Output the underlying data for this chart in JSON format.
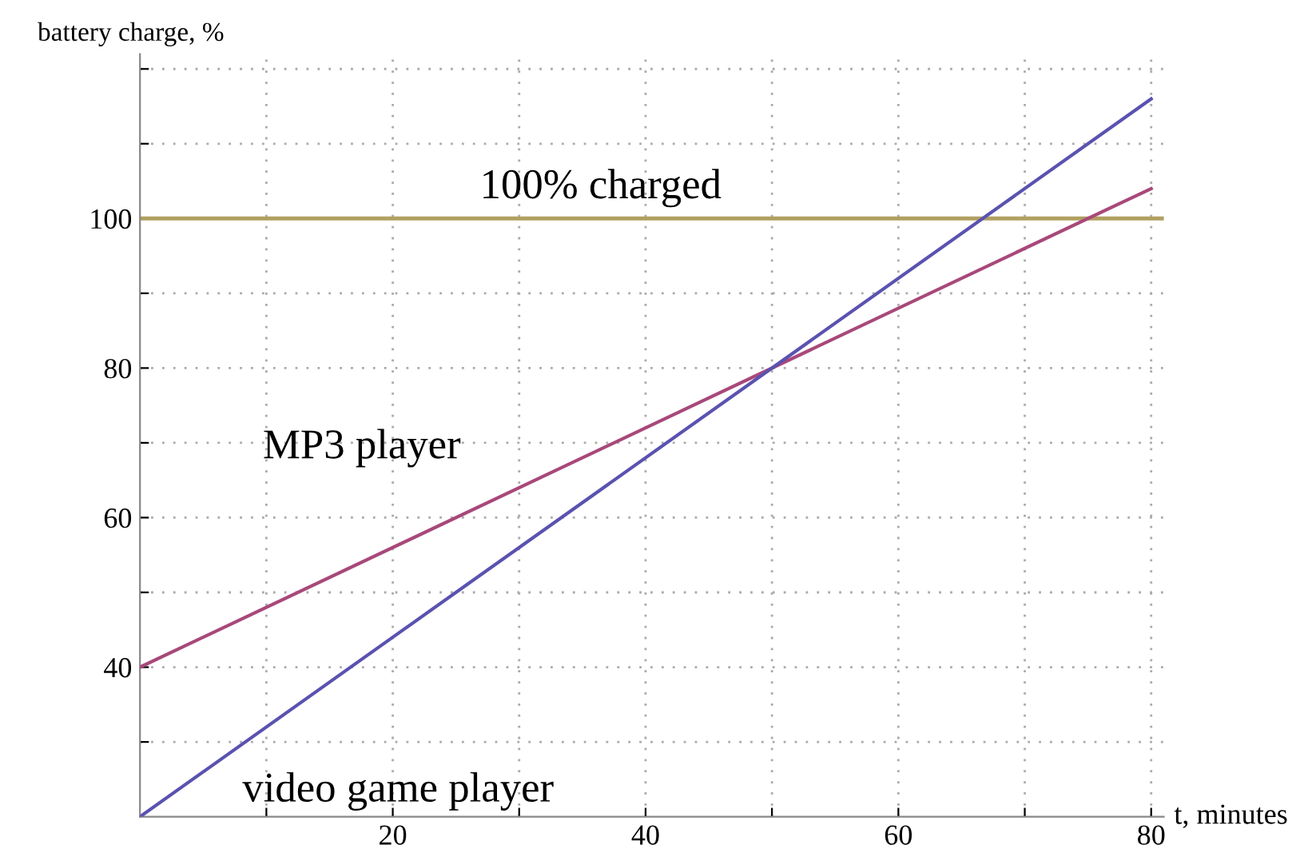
{
  "chart_data": {
    "type": "line",
    "xlabel": "t, minutes",
    "ylabel": "battery charge, %",
    "x": [
      0,
      80
    ],
    "series": [
      {
        "name": "MP3 player",
        "color": "#a8487a",
        "values": [
          40,
          104
        ]
      },
      {
        "name": "video game player",
        "color": "#5a52b0",
        "values": [
          20,
          116
        ]
      }
    ],
    "ref_lines": [
      {
        "axis": "y",
        "value": 100,
        "label": "100% charged",
        "color": "#b0a060"
      }
    ],
    "xlim": [
      0,
      81
    ],
    "ylim": [
      20,
      122
    ],
    "xticks": [
      {
        "value": 10,
        "label": null
      },
      20,
      {
        "value": 30,
        "label": null
      },
      40,
      {
        "value": 50,
        "label": null
      },
      60,
      {
        "value": 70,
        "label": null
      },
      80
    ],
    "yticks": [
      {
        "value": 30,
        "label": null
      },
      40,
      {
        "value": 50,
        "label": null
      },
      60,
      {
        "value": 70,
        "label": null
      },
      80,
      {
        "value": 90,
        "label": null
      },
      100,
      {
        "value": 110,
        "label": null
      },
      {
        "value": 120,
        "label": null
      }
    ],
    "grid": true,
    "legend": false,
    "line_style": "solid",
    "marker": "none"
  }
}
